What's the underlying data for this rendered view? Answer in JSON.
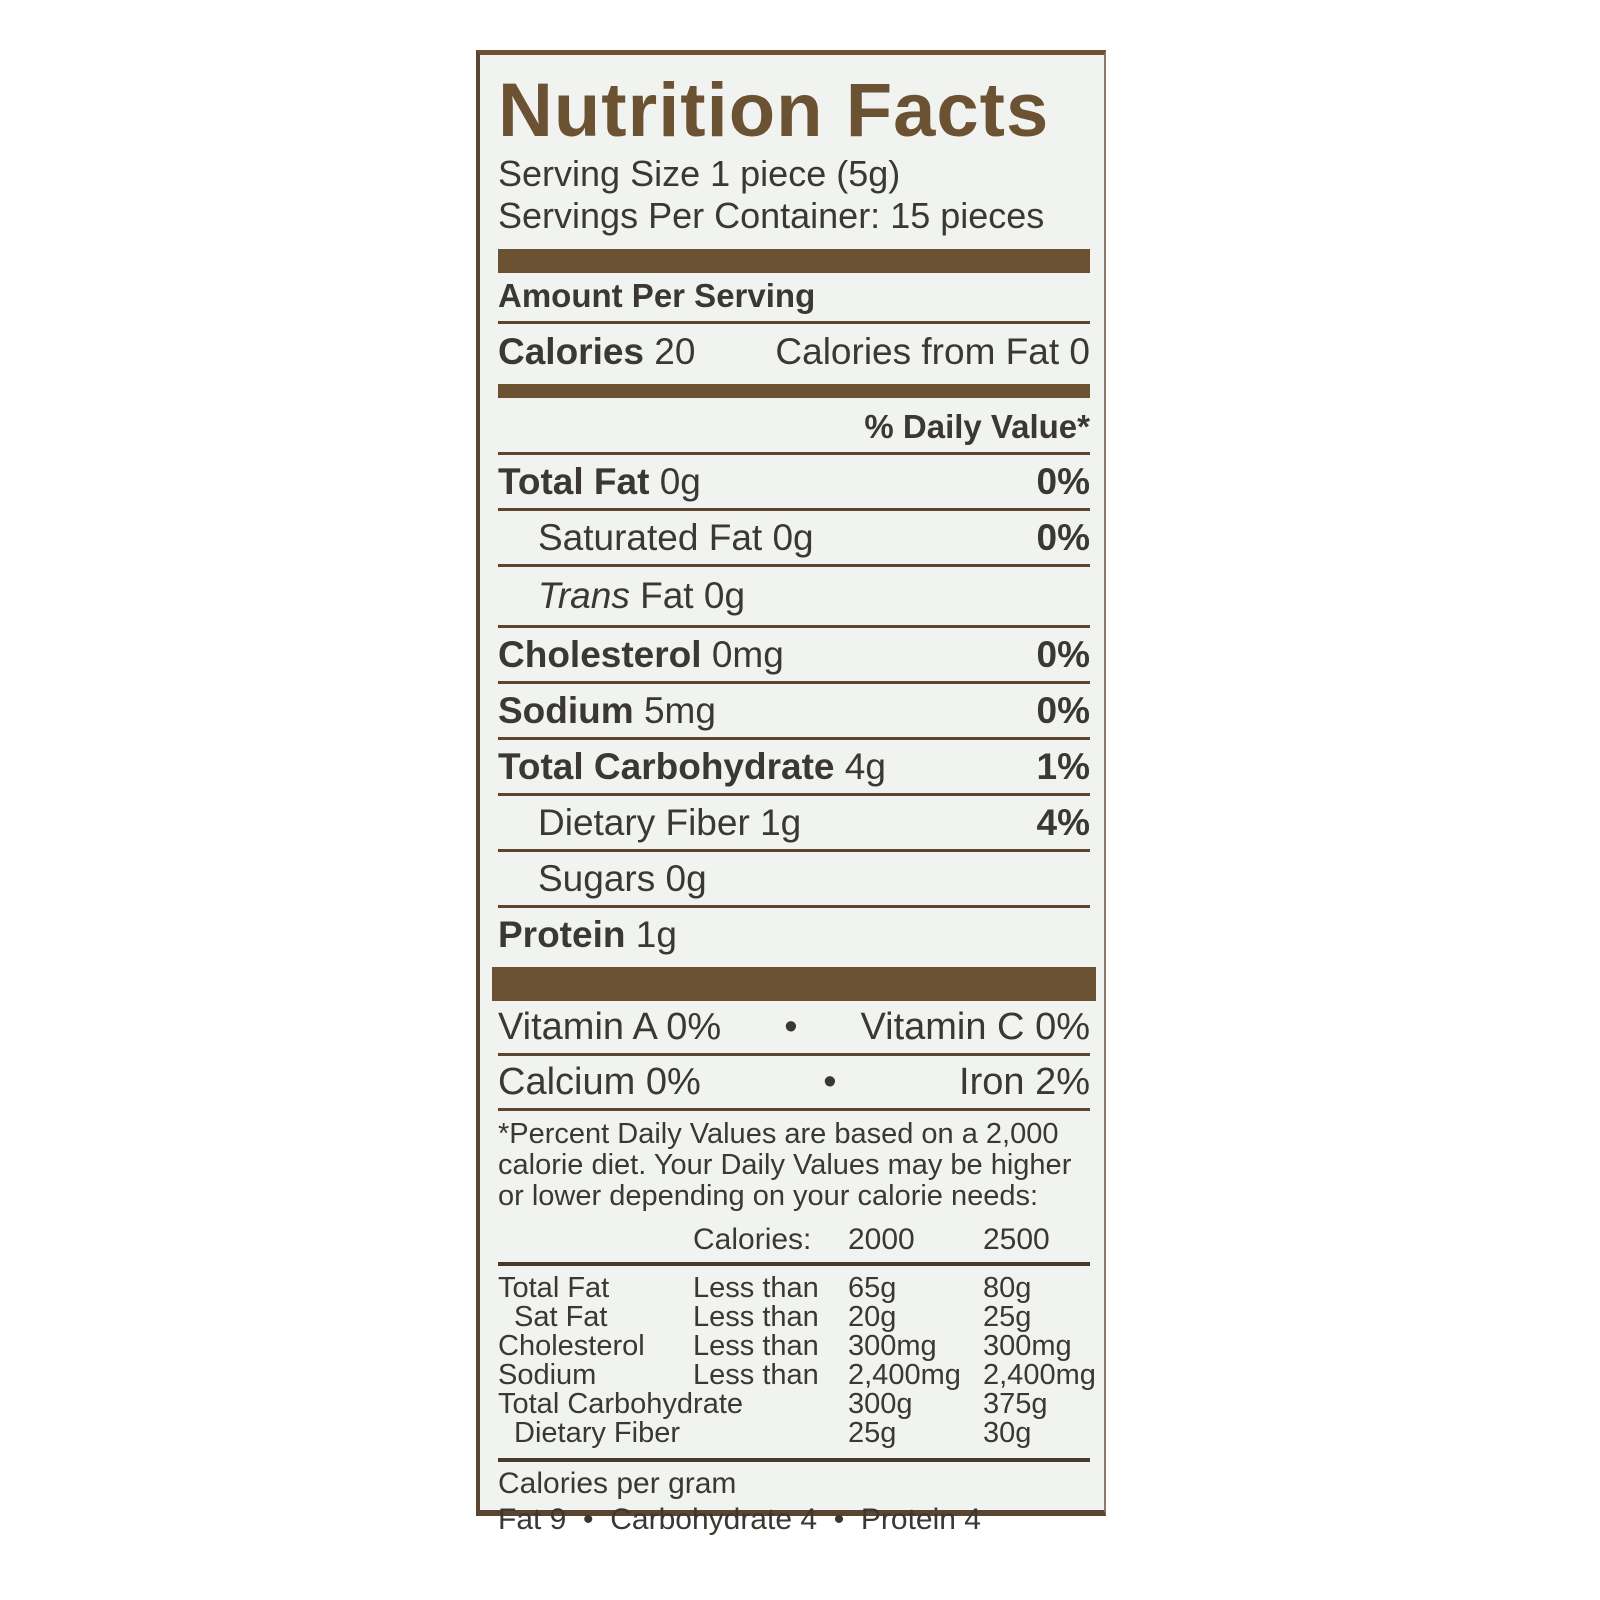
{
  "title": "Nutrition Facts",
  "serving_size": {
    "label": "Serving Size",
    "value": "1 piece (5g)"
  },
  "servings_per_container": {
    "label": "Servings Per Container:",
    "value": "15 pieces"
  },
  "amount_per_serving": "Amount Per Serving",
  "calories": {
    "label": "Calories",
    "value": "20",
    "from_fat_label": "Calories from Fat",
    "from_fat_value": "0"
  },
  "daily_value_header": "% Daily Value*",
  "nutrients": [
    {
      "name": "Total Fat",
      "amount": "0g",
      "dv": "0%"
    },
    {
      "name": "Saturated Fat",
      "amount": "0g",
      "dv": "0%"
    },
    {
      "name": "Trans",
      "name_rest": "Fat",
      "amount": "0g",
      "dv": ""
    },
    {
      "name": "Cholesterol",
      "amount": "0mg",
      "dv": "0%"
    },
    {
      "name": "Sodium",
      "amount": "5mg",
      "dv": "0%"
    },
    {
      "name": "Total Carbohydrate",
      "amount": "4g",
      "dv": "1%"
    },
    {
      "name": "Dietary Fiber",
      "amount": "1g",
      "dv": "4%"
    },
    {
      "name": "Sugars",
      "amount": "0g",
      "dv": ""
    },
    {
      "name": "Protein",
      "amount": "1g",
      "dv": ""
    }
  ],
  "vitamins": [
    {
      "name": "Vitamin A",
      "dv": "0%"
    },
    {
      "name": "Vitamin C",
      "dv": "0%"
    },
    {
      "name": "Calcium",
      "dv": "0%"
    },
    {
      "name": "Iron",
      "dv": "2%"
    }
  ],
  "bullet": "•",
  "footnote": "*Percent Daily Values are based on a 2,000 calorie diet. Your Daily Values may be higher or lower depending on your calorie needs:",
  "dv_table": {
    "header": [
      "",
      "Calories:",
      "2000",
      "2500"
    ],
    "rows": [
      [
        "Total Fat",
        "Less than",
        "65g",
        "80g"
      ],
      [
        "Sat Fat",
        "Less than",
        "20g",
        "25g"
      ],
      [
        "Cholesterol",
        "Less than",
        "300mg",
        "300mg"
      ],
      [
        "Sodium",
        "Less than",
        "2,400mg",
        "2,400mg"
      ],
      [
        "Total Carbohydrate",
        "",
        "300g",
        "375g"
      ],
      [
        "Dietary Fiber",
        "",
        "25g",
        "30g"
      ]
    ]
  },
  "calories_per_gram": {
    "label": "Calories per gram",
    "fat": "Fat 9",
    "carbohydrate": "Carbohydrate 4",
    "protein": "Protein 4"
  },
  "colors": {
    "brand_brown": "#6b5233",
    "text": "#3b3833",
    "background": "#f1f3f1"
  }
}
